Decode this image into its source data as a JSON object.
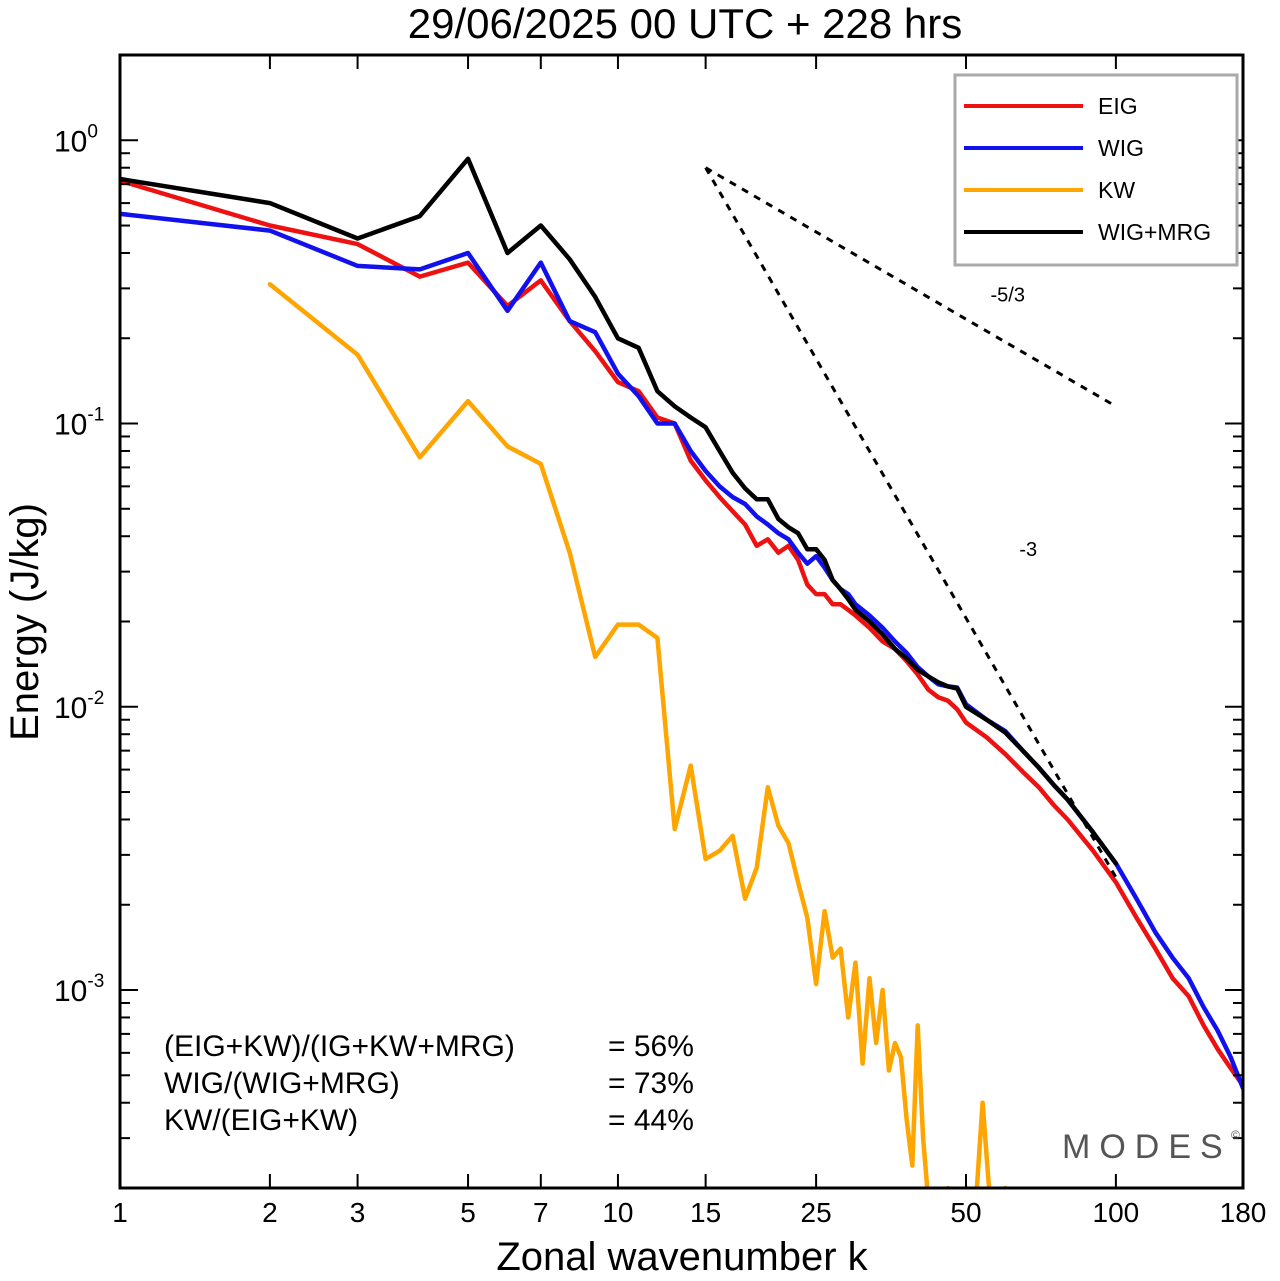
{
  "chart_data": {
    "type": "line",
    "title": "29/06/2025  00 UTC  + 228 hrs",
    "xlabel": "Zonal wavenumber k",
    "ylabel": "Energy (J/kg)",
    "x_scale": "log",
    "y_scale": "log",
    "xlim": [
      1,
      180
    ],
    "ylim": [
      0.0002,
      2.0
    ],
    "x_ticks": [
      1,
      2,
      3,
      5,
      7,
      10,
      15,
      25,
      50,
      100,
      180
    ],
    "y_ticks": [
      {
        "value": 1,
        "base": "10",
        "exp": "0"
      },
      {
        "value": 0.1,
        "base": "10",
        "exp": "-1"
      },
      {
        "value": 0.01,
        "base": "10",
        "exp": "-2"
      },
      {
        "value": 0.001,
        "base": "10",
        "exp": "-3"
      }
    ],
    "grid": false,
    "legend_position": "top-right",
    "series": [
      {
        "name": "EIG",
        "color": "#ee1111",
        "points": [
          [
            1,
            0.72
          ],
          [
            2,
            0.5
          ],
          [
            3,
            0.43
          ],
          [
            4,
            0.33
          ],
          [
            5,
            0.37
          ],
          [
            6,
            0.26
          ],
          [
            7,
            0.32
          ],
          [
            8,
            0.23
          ],
          [
            9,
            0.18
          ],
          [
            10,
            0.14
          ],
          [
            11,
            0.13
          ],
          [
            12,
            0.105
          ],
          [
            13,
            0.1
          ],
          [
            14,
            0.074
          ],
          [
            15,
            0.063
          ],
          [
            16,
            0.055
          ],
          [
            17,
            0.049
          ],
          [
            18,
            0.044
          ],
          [
            19,
            0.037
          ],
          [
            20,
            0.039
          ],
          [
            21,
            0.035
          ],
          [
            22,
            0.037
          ],
          [
            23,
            0.033
          ],
          [
            24,
            0.027
          ],
          [
            25,
            0.025
          ],
          [
            26,
            0.025
          ],
          [
            27,
            0.023
          ],
          [
            28,
            0.023
          ],
          [
            29,
            0.022
          ],
          [
            30,
            0.021
          ],
          [
            32,
            0.019
          ],
          [
            34,
            0.017
          ],
          [
            36,
            0.016
          ],
          [
            38,
            0.0145
          ],
          [
            40,
            0.013
          ],
          [
            42,
            0.0115
          ],
          [
            44,
            0.0108
          ],
          [
            46,
            0.0105
          ],
          [
            48,
            0.0098
          ],
          [
            50,
            0.0088
          ],
          [
            55,
            0.0078
          ],
          [
            60,
            0.0068
          ],
          [
            65,
            0.0059
          ],
          [
            70,
            0.0052
          ],
          [
            75,
            0.0045
          ],
          [
            80,
            0.004
          ],
          [
            90,
            0.0031
          ],
          [
            100,
            0.0024
          ],
          [
            110,
            0.0018
          ],
          [
            120,
            0.0014
          ],
          [
            130,
            0.0011
          ],
          [
            140,
            0.00095
          ],
          [
            150,
            0.00075
          ],
          [
            160,
            0.00062
          ],
          [
            170,
            0.00053
          ],
          [
            180,
            0.00046
          ]
        ]
      },
      {
        "name": "WIG",
        "color": "#1111ee",
        "points": [
          [
            1,
            0.55
          ],
          [
            2,
            0.48
          ],
          [
            3,
            0.36
          ],
          [
            4,
            0.35
          ],
          [
            5,
            0.4
          ],
          [
            6,
            0.25
          ],
          [
            7,
            0.37
          ],
          [
            8,
            0.23
          ],
          [
            9,
            0.21
          ],
          [
            10,
            0.15
          ],
          [
            11,
            0.125
          ],
          [
            12,
            0.1
          ],
          [
            13,
            0.1
          ],
          [
            14,
            0.08
          ],
          [
            15,
            0.068
          ],
          [
            16,
            0.06
          ],
          [
            17,
            0.055
          ],
          [
            18,
            0.052
          ],
          [
            19,
            0.047
          ],
          [
            20,
            0.044
          ],
          [
            21,
            0.041
          ],
          [
            22,
            0.039
          ],
          [
            23,
            0.035
          ],
          [
            24,
            0.032
          ],
          [
            25,
            0.034
          ],
          [
            26,
            0.031
          ],
          [
            27,
            0.028
          ],
          [
            28,
            0.026
          ],
          [
            29,
            0.025
          ],
          [
            30,
            0.023
          ],
          [
            32,
            0.021
          ],
          [
            34,
            0.019
          ],
          [
            36,
            0.017
          ],
          [
            38,
            0.0155
          ],
          [
            40,
            0.0138
          ],
          [
            42,
            0.0128
          ],
          [
            44,
            0.012
          ],
          [
            46,
            0.0118
          ],
          [
            48,
            0.0117
          ],
          [
            50,
            0.0102
          ],
          [
            55,
            0.009
          ],
          [
            60,
            0.0082
          ],
          [
            65,
            0.007
          ],
          [
            70,
            0.0061
          ],
          [
            75,
            0.0053
          ],
          [
            80,
            0.0047
          ],
          [
            90,
            0.0036
          ],
          [
            100,
            0.0028
          ],
          [
            110,
            0.0021
          ],
          [
            120,
            0.0016
          ],
          [
            130,
            0.0013
          ],
          [
            140,
            0.0011
          ],
          [
            150,
            0.00087
          ],
          [
            160,
            0.00072
          ],
          [
            170,
            0.00058
          ],
          [
            180,
            0.00045
          ]
        ]
      },
      {
        "name": "KW",
        "color": "#ffa500",
        "points": [
          [
            2,
            0.31
          ],
          [
            3,
            0.175
          ],
          [
            4,
            0.076
          ],
          [
            5,
            0.12
          ],
          [
            6,
            0.083
          ],
          [
            7,
            0.072
          ],
          [
            8,
            0.035
          ],
          [
            9,
            0.015
          ],
          [
            10,
            0.0195
          ],
          [
            11,
            0.0195
          ],
          [
            12,
            0.0175
          ],
          [
            13,
            0.0037
          ],
          [
            14,
            0.0062
          ],
          [
            15,
            0.0029
          ],
          [
            16,
            0.0031
          ],
          [
            17,
            0.0035
          ],
          [
            18,
            0.0021
          ],
          [
            19,
            0.0027
          ],
          [
            20,
            0.0052
          ],
          [
            21,
            0.0038
          ],
          [
            22,
            0.0033
          ],
          [
            23,
            0.0024
          ],
          [
            24,
            0.0018
          ],
          [
            25,
            0.00105
          ],
          [
            26,
            0.0019
          ],
          [
            27,
            0.0013
          ],
          [
            28,
            0.0014
          ],
          [
            29,
            0.0008
          ],
          [
            30,
            0.00125
          ],
          [
            31,
            0.00055
          ],
          [
            32,
            0.0011
          ],
          [
            33,
            0.00065
          ],
          [
            34,
            0.001
          ],
          [
            35,
            0.00052
          ],
          [
            36,
            0.00065
          ],
          [
            37,
            0.00058
          ],
          [
            38,
            0.00035
          ],
          [
            39,
            0.00024
          ],
          [
            40,
            0.00075
          ],
          [
            41,
            0.0003
          ],
          [
            42,
            0.00018
          ],
          [
            44,
            0.00015
          ],
          [
            46,
            0.0002
          ],
          [
            48,
            0.00014
          ],
          [
            50,
            0.0002
          ],
          [
            52,
            0.00015
          ],
          [
            54,
            0.0004
          ],
          [
            56,
            0.00017
          ],
          [
            58,
            0.00014
          ],
          [
            60,
            0.0002
          ],
          [
            62,
            0.00013
          ],
          [
            64,
            0.00018
          ],
          [
            66,
            0.00012
          ]
        ]
      },
      {
        "name": "WIG+MRG",
        "color": "#000000",
        "points": [
          [
            1,
            0.73
          ],
          [
            2,
            0.6
          ],
          [
            3,
            0.45
          ],
          [
            4,
            0.54
          ],
          [
            5,
            0.86
          ],
          [
            6,
            0.4
          ],
          [
            7,
            0.5
          ],
          [
            8,
            0.38
          ],
          [
            9,
            0.28
          ],
          [
            10,
            0.2
          ],
          [
            11,
            0.185
          ],
          [
            12,
            0.13
          ],
          [
            13,
            0.115
          ],
          [
            14,
            0.105
          ],
          [
            15,
            0.097
          ],
          [
            16,
            0.08
          ],
          [
            17,
            0.067
          ],
          [
            18,
            0.059
          ],
          [
            19,
            0.054
          ],
          [
            20,
            0.054
          ],
          [
            21,
            0.046
          ],
          [
            22,
            0.043
          ],
          [
            23,
            0.041
          ],
          [
            24,
            0.036
          ],
          [
            25,
            0.036
          ],
          [
            26,
            0.033
          ],
          [
            27,
            0.028
          ],
          [
            28,
            0.026
          ],
          [
            29,
            0.024
          ],
          [
            30,
            0.022
          ],
          [
            32,
            0.02
          ],
          [
            34,
            0.018
          ],
          [
            36,
            0.016
          ],
          [
            38,
            0.0148
          ],
          [
            40,
            0.0135
          ],
          [
            42,
            0.0128
          ],
          [
            44,
            0.0122
          ],
          [
            46,
            0.0118
          ],
          [
            48,
            0.0116
          ],
          [
            50,
            0.01
          ],
          [
            55,
            0.009
          ],
          [
            60,
            0.0081
          ],
          [
            65,
            0.007
          ],
          [
            70,
            0.0061
          ],
          [
            75,
            0.0053
          ],
          [
            80,
            0.0047
          ],
          [
            90,
            0.0036
          ],
          [
            100,
            0.0028
          ]
        ]
      }
    ],
    "reference_lines": [
      {
        "label": "-5/3",
        "points": [
          [
            15,
            0.8
          ],
          [
            100,
            0.115
          ]
        ],
        "label_at": [
          56,
          0.27
        ]
      },
      {
        "label": "-3",
        "points": [
          [
            15,
            0.8
          ],
          [
            100,
            0.0025
          ]
        ],
        "label_at": [
          64,
          0.034
        ]
      }
    ],
    "annotations": [
      {
        "label": "(EIG+KW)/(IG+KW+MRG)",
        "value": "= 56%"
      },
      {
        "label": "WIG/(WIG+MRG)",
        "value": "= 73%"
      },
      {
        "label": "KW/(EIG+KW)",
        "value": "= 44%"
      }
    ],
    "brand": "MODES",
    "brand_mark": "©"
  }
}
